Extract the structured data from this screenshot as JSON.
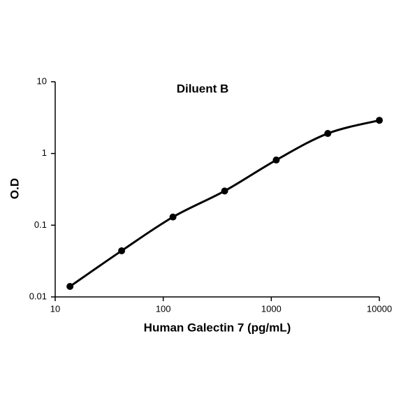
{
  "chart_data": {
    "type": "line",
    "title": "Diluent B",
    "x_label": "Human Galectin 7 (pg/mL)",
    "y_label": "O.D",
    "x": [
      13.7,
      41.2,
      123,
      370,
      1111,
      3333,
      10000
    ],
    "values": [
      0.014,
      0.044,
      0.13,
      0.3,
      0.81,
      1.9,
      2.9
    ],
    "color": "#000000",
    "xlim": [
      10,
      10000
    ],
    "ylim": [
      0.01,
      10
    ],
    "xticks": [
      10,
      100,
      1000,
      10000
    ],
    "yticks": [
      0.01,
      0.1,
      1,
      10
    ],
    "xscale": "log",
    "yscale": "log"
  }
}
